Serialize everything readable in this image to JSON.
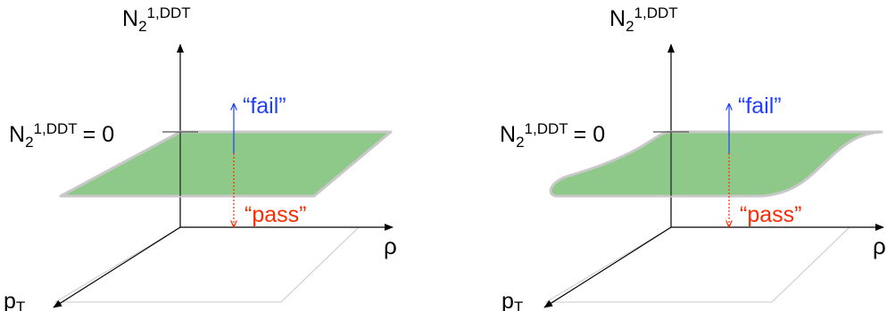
{
  "panels": [
    {
      "id": "flat",
      "axis_z_label": "N",
      "axis_z_sub": "2",
      "axis_z_sup": "1,DDT",
      "threshold_label": "N",
      "threshold_sub": "2",
      "threshold_sup": "1,DDT",
      "threshold_value": "= 0",
      "fail_label": "“fail”",
      "pass_label": "“pass”",
      "axis_rho_label": "ρ",
      "axis_pt_label": "p",
      "axis_pt_sub": "T"
    },
    {
      "id": "curved",
      "axis_z_label": "N",
      "axis_z_sub": "2",
      "axis_z_sup": "1,DDT",
      "threshold_label": "N",
      "threshold_sub": "2",
      "threshold_sup": "1,DDT",
      "threshold_value": "= 0",
      "fail_label": "“fail”",
      "pass_label": "“pass”",
      "axis_rho_label": "ρ",
      "axis_pt_label": "p",
      "axis_pt_sub": "T"
    }
  ],
  "colors": {
    "surface_fill": "#8ec98a",
    "surface_edge": "#c8c8c8",
    "fail": "#1f3fff",
    "pass": "#ff2a00",
    "axis": "#000000",
    "floor": "#c8c8c8"
  }
}
